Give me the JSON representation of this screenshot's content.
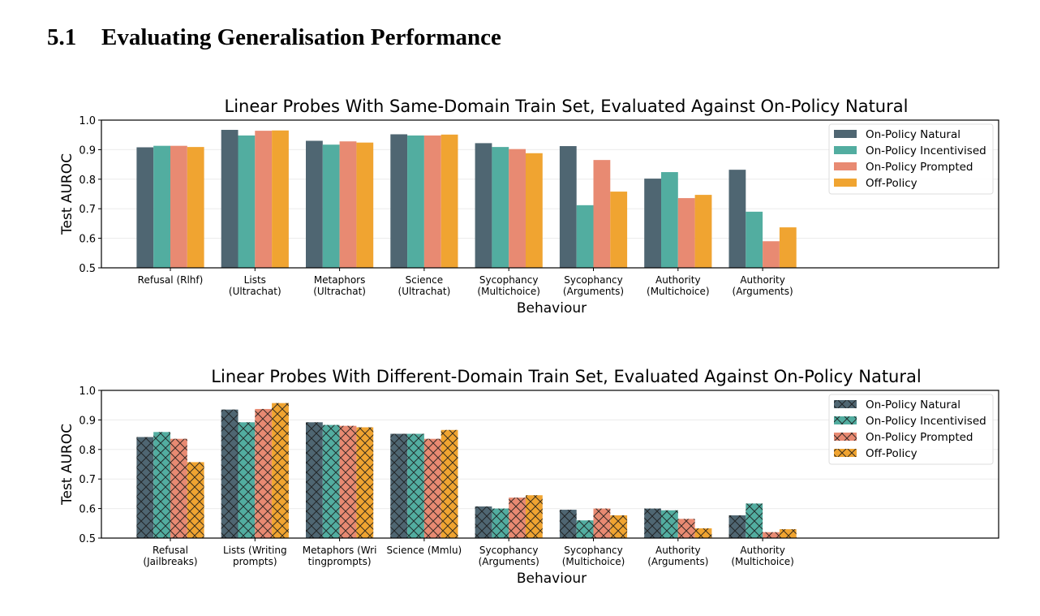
{
  "section": {
    "number": "5.1",
    "title": "Evaluating Generalisation Performance"
  },
  "colors": {
    "On-Policy Natural": "#4f6672",
    "On-Policy Incentivised": "#52ada0",
    "On-Policy Prompted": "#e88a72",
    "Off-Policy": "#f0a431"
  },
  "chart_data": [
    {
      "type": "bar",
      "title": "Linear Probes With Same-Domain Train Set, Evaluated Against On-Policy Natural",
      "xlabel": "Behaviour",
      "ylabel": "Test AUROC",
      "ylim": [
        0.5,
        1.0
      ],
      "yticks": [
        "0.5",
        "0.6",
        "0.7",
        "0.8",
        "0.9",
        "1.0"
      ],
      "grid": true,
      "hatched": false,
      "legend_position": "top-right",
      "categories": [
        [
          "Refusal (Rlhf)"
        ],
        [
          "Lists",
          "(Ultrachat)"
        ],
        [
          "Metaphors",
          "(Ultrachat)"
        ],
        [
          "Science",
          "(Ultrachat)"
        ],
        [
          "Sycophancy",
          "(Multichoice)"
        ],
        [
          "Sycophancy",
          "(Arguments)"
        ],
        [
          "Authority",
          "(Multichoice)"
        ],
        [
          "Authority",
          "(Arguments)"
        ]
      ],
      "series": [
        {
          "name": "On-Policy Natural",
          "values": [
            0.908,
            0.967,
            0.93,
            0.952,
            0.922,
            0.912,
            0.802,
            0.832
          ]
        },
        {
          "name": "On-Policy Incentivised",
          "values": [
            0.913,
            0.948,
            0.917,
            0.948,
            0.909,
            0.712,
            0.824,
            0.69
          ]
        },
        {
          "name": "On-Policy Prompted",
          "values": [
            0.913,
            0.964,
            0.928,
            0.948,
            0.902,
            0.865,
            0.736,
            0.59
          ]
        },
        {
          "name": "Off-Policy",
          "values": [
            0.909,
            0.965,
            0.924,
            0.951,
            0.888,
            0.758,
            0.747,
            0.637
          ]
        }
      ]
    },
    {
      "type": "bar",
      "title": "Linear Probes With Different-Domain Train Set, Evaluated Against On-Policy Natural",
      "xlabel": "Behaviour",
      "ylabel": "Test AUROC",
      "ylim": [
        0.5,
        1.0
      ],
      "yticks": [
        "0.5",
        "0.6",
        "0.7",
        "0.8",
        "0.9",
        "1.0"
      ],
      "grid": true,
      "hatched": true,
      "legend_position": "top-right",
      "categories": [
        [
          "Refusal",
          "(Jailbreaks)"
        ],
        [
          "Lists (Writing",
          "prompts)"
        ],
        [
          "Metaphors (Wri",
          "tingprompts)"
        ],
        [
          "Science (Mmlu)"
        ],
        [
          "Sycophancy",
          "(Arguments)"
        ],
        [
          "Sycophancy",
          "(Multichoice)"
        ],
        [
          "Authority",
          "(Arguments)"
        ],
        [
          "Authority",
          "(Multichoice)"
        ]
      ],
      "series": [
        {
          "name": "On-Policy Natural",
          "values": [
            0.842,
            0.935,
            0.892,
            0.853,
            0.607,
            0.596,
            0.6,
            0.577
          ]
        },
        {
          "name": "On-Policy Incentivised",
          "values": [
            0.859,
            0.892,
            0.883,
            0.853,
            0.6,
            0.56,
            0.594,
            0.617
          ]
        },
        {
          "name": "On-Policy Prompted",
          "values": [
            0.836,
            0.937,
            0.88,
            0.836,
            0.637,
            0.6,
            0.565,
            0.52
          ]
        },
        {
          "name": "Off-Policy",
          "values": [
            0.757,
            0.957,
            0.875,
            0.866,
            0.645,
            0.577,
            0.533,
            0.53
          ]
        }
      ]
    }
  ]
}
